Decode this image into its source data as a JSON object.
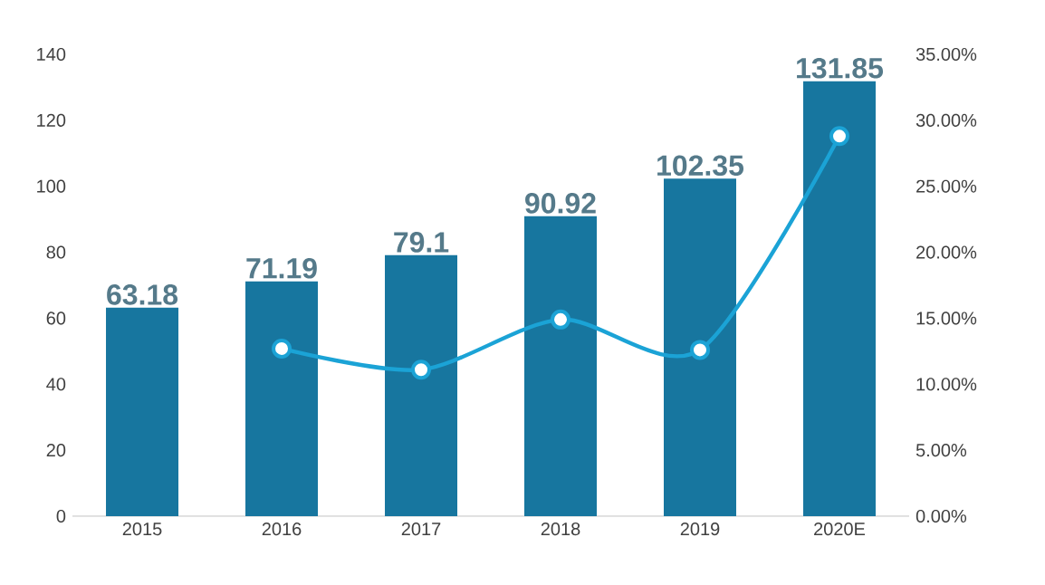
{
  "chart_data": {
    "type": "bar",
    "categories": [
      "2015",
      "2016",
      "2017",
      "2018",
      "2019",
      "2020E"
    ],
    "series": [
      {
        "color": "#17769f",
        "values": [
          63.18,
          71.19,
          79.1,
          90.92,
          102.35,
          131.85
        ],
        "value_labels": [
          "63.18",
          "71.19",
          "79.1",
          "90.92",
          "102.35",
          "131.85"
        ]
      },
      {
        "type": "line",
        "axis": "y2",
        "color": "#1ba3d6",
        "values": [
          null,
          12.7,
          11.1,
          14.9,
          12.6,
          28.8
        ]
      }
    ],
    "ylim": [
      0,
      140
    ],
    "yticks": [
      0,
      20,
      40,
      60,
      80,
      100,
      120,
      140
    ],
    "y2lim": [
      0,
      35
    ],
    "y2ticks": [
      {
        "value": 0,
        "label": "0.00%"
      },
      {
        "value": 5,
        "label": "5.00%"
      },
      {
        "value": 10,
        "label": "10.00%"
      },
      {
        "value": 15,
        "label": "15.00%"
      },
      {
        "value": 20,
        "label": "20.00%"
      },
      {
        "value": 25,
        "label": "25.00%"
      },
      {
        "value": 30,
        "label": "30.00%"
      },
      {
        "value": 35,
        "label": "35.00%"
      }
    ],
    "grid": false,
    "legend": false,
    "marker": "circle",
    "line_style": "solid"
  }
}
